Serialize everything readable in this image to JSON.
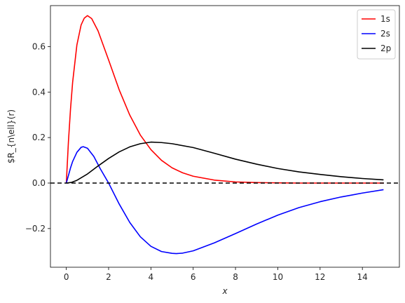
{
  "chart_data": {
    "type": "line",
    "xlabel": "x",
    "ylabel": "$R_{n\\ell}(r)",
    "xlim": [
      -0.75,
      15.75
    ],
    "ylim": [
      -0.37,
      0.78
    ],
    "xticks": [
      0,
      2,
      4,
      6,
      8,
      10,
      12,
      14
    ],
    "xtick_labels": [
      "0",
      "2",
      "4",
      "6",
      "8",
      "10",
      "12",
      "14"
    ],
    "yticks": [
      -0.2,
      0.0,
      0.2,
      0.4,
      0.6
    ],
    "ytick_labels": [
      "−0.2",
      "0.0",
      "0.2",
      "0.4",
      "0.6"
    ],
    "grid": false,
    "legend_position": "top-right",
    "reference_line": {
      "y": 0,
      "style": "dashed",
      "color": "#000000"
    },
    "series": [
      {
        "name": "1s",
        "color": "#ff0000",
        "x": [
          0,
          0.1,
          0.2,
          0.3,
          0.5,
          0.7,
          0.85,
          1.0,
          1.2,
          1.5,
          2.0,
          2.5,
          3.0,
          3.5,
          4.0,
          4.5,
          5.0,
          5.5,
          6.0,
          7.0,
          8.0,
          9.0,
          10.0,
          11.0,
          12.0,
          13.0,
          14.0,
          15.0
        ],
        "y": [
          0.0,
          0.181,
          0.327,
          0.444,
          0.607,
          0.695,
          0.725,
          0.736,
          0.723,
          0.669,
          0.541,
          0.41,
          0.299,
          0.211,
          0.147,
          0.1,
          0.067,
          0.045,
          0.03,
          0.013,
          0.005,
          0.002,
          0.001,
          0.0,
          0.0,
          0.0,
          0.0,
          0.0
        ]
      },
      {
        "name": "2s",
        "color": "#0000ff",
        "x": [
          0,
          0.1,
          0.2,
          0.3,
          0.5,
          0.7,
          0.8,
          1.0,
          1.3,
          1.6,
          2.0,
          2.5,
          3.0,
          3.5,
          4.0,
          4.5,
          5.0,
          5.2,
          5.5,
          6.0,
          7.0,
          8.0,
          9.0,
          10.0,
          11.0,
          12.0,
          13.0,
          14.0,
          15.0
        ],
        "y": [
          0.0,
          0.033,
          0.067,
          0.095,
          0.135,
          0.157,
          0.16,
          0.153,
          0.117,
          0.064,
          0.0,
          -0.092,
          -0.173,
          -0.236,
          -0.278,
          -0.301,
          -0.309,
          -0.31,
          -0.308,
          -0.298,
          -0.263,
          -0.222,
          -0.18,
          -0.141,
          -0.108,
          -0.082,
          -0.061,
          -0.044,
          -0.029
        ]
      },
      {
        "name": "2p",
        "color": "#000000",
        "x": [
          0,
          0.25,
          0.5,
          1.0,
          1.5,
          2.0,
          2.5,
          3.0,
          3.5,
          4.0,
          4.5,
          5.0,
          6.0,
          7.0,
          8.0,
          9.0,
          10.0,
          11.0,
          12.0,
          13.0,
          14.0,
          15.0
        ],
        "y": [
          0.0,
          0.003,
          0.012,
          0.04,
          0.075,
          0.108,
          0.137,
          0.159,
          0.173,
          0.18,
          0.178,
          0.173,
          0.156,
          0.131,
          0.105,
          0.083,
          0.064,
          0.049,
          0.038,
          0.028,
          0.02,
          0.014
        ]
      }
    ]
  }
}
